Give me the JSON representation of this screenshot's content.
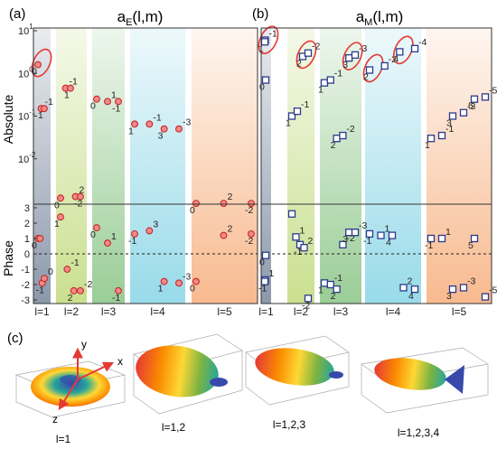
{
  "panel_labels": {
    "a": "(a)",
    "b": "(b)",
    "c": "(c)"
  },
  "colors": {
    "electric_marker_fill": "#f08a8a",
    "electric_marker_edge": "#c62828",
    "magnetic_marker_edge": "#2a3a8c",
    "highlight_ellipse": "#e53935",
    "band_l1": "#6f7f96",
    "band_l2": "#b8d56a",
    "band_l3": "#6fb86a",
    "band_l4": "#6ccbe0",
    "band_l5": "#f5a36a"
  },
  "chart_data": [
    {
      "type": "scatter",
      "title": "a_E(l,m)",
      "title_main": "a",
      "title_sub": "E",
      "title_args": "(l,m)",
      "ylabel_top": "Absolute",
      "ylabel_bottom": "Phase",
      "y_scale_top": "log",
      "ylim_top": [
        0.001,
        10
      ],
      "ylim_bottom": [
        -3,
        3
      ],
      "y_ticks_top": [
        "10",
        "10",
        "10",
        "10"
      ],
      "y_tick_exponents_top": [
        "1",
        "0",
        "-1",
        "-2"
      ],
      "y_ticks_bottom": [
        "3",
        "2",
        "1",
        "0",
        "-1",
        "-2",
        "-3"
      ],
      "categories": [
        "l=1",
        "l=2",
        "l=3",
        "l=4",
        "l=5"
      ],
      "reference_line_phase": 0,
      "absolute_points": [
        {
          "l": 1,
          "i": 0,
          "value": 1.6,
          "label": "0",
          "highlight": true
        },
        {
          "l": 1,
          "i": 1,
          "value": 0.15,
          "label": "-1"
        },
        {
          "l": 1,
          "i": 2,
          "value": 0.15,
          "label": "1"
        },
        {
          "l": 2,
          "i": 0,
          "value": 0.0012,
          "label": "0"
        },
        {
          "l": 2,
          "i": 1,
          "value": 0.45,
          "label": "-1"
        },
        {
          "l": 2,
          "i": 2,
          "value": 0.45,
          "label": "1"
        },
        {
          "l": 2,
          "i": 3,
          "value": 0.0013,
          "label": "2"
        },
        {
          "l": 2,
          "i": 4,
          "value": 0.0013,
          "label": "-2"
        },
        {
          "l": 3,
          "i": 0,
          "value": 0.25,
          "label": "0"
        },
        {
          "l": 3,
          "i": 1,
          "value": 0.22,
          "label": "1"
        },
        {
          "l": 3,
          "i": 2,
          "value": 0.22,
          "label": "-1"
        },
        {
          "l": 4,
          "i": 0,
          "value": 0.065,
          "label": "1"
        },
        {
          "l": 4,
          "i": 1,
          "value": 0.065,
          "label": "-1"
        },
        {
          "l": 4,
          "i": 2,
          "value": 0.05,
          "label": "3"
        },
        {
          "l": 4,
          "i": 3,
          "value": 0.05,
          "label": "-3"
        },
        {
          "l": 5,
          "i": 0,
          "value": 0.0009,
          "label": "0"
        },
        {
          "l": 5,
          "i": 1,
          "value": 0.0009,
          "label": "2"
        },
        {
          "l": 5,
          "i": 2,
          "value": 0.0009,
          "label": "-2"
        }
      ],
      "phase_points": [
        {
          "l": 1,
          "i": 0,
          "value": 1.0,
          "label": "0"
        },
        {
          "l": 1,
          "i": 1,
          "value": 1.0,
          "label": ""
        },
        {
          "l": 1,
          "i": 2,
          "value": -1.9,
          "label": "-1"
        },
        {
          "l": 1,
          "i": 3,
          "value": -1.6,
          "label": "0"
        },
        {
          "l": 2,
          "i": 0,
          "value": 2.4,
          "label": "1"
        },
        {
          "l": 2,
          "i": 1,
          "value": -1.0,
          "label": "-1"
        },
        {
          "l": 2,
          "i": 2,
          "value": -2.4,
          "label": "2"
        },
        {
          "l": 2,
          "i": 3,
          "value": -2.4,
          "label": "-2"
        },
        {
          "l": 3,
          "i": 0,
          "value": 1.7,
          "label": "0"
        },
        {
          "l": 3,
          "i": 1,
          "value": 0.7,
          "label": "1"
        },
        {
          "l": 3,
          "i": 2,
          "value": -2.4,
          "label": "-1"
        },
        {
          "l": 4,
          "i": 0,
          "value": 1.3,
          "label": "-1"
        },
        {
          "l": 4,
          "i": 1,
          "value": 1.5,
          "label": "3"
        },
        {
          "l": 4,
          "i": 2,
          "value": -1.8,
          "label": "1"
        },
        {
          "l": 4,
          "i": 3,
          "value": -1.9,
          "label": "-3"
        },
        {
          "l": 5,
          "i": 0,
          "value": -1.8,
          "label": "0"
        },
        {
          "l": 5,
          "i": 1,
          "value": 1.2,
          "label": "2"
        },
        {
          "l": 5,
          "i": 2,
          "value": 1.3,
          "label": "-2"
        }
      ]
    },
    {
      "type": "scatter",
      "title": "a_M(l,m)",
      "title_main": "a",
      "title_sub": "M",
      "title_args": "(l,m)",
      "y_scale_top": "log",
      "ylim_top": [
        0.001,
        10
      ],
      "ylim_bottom": [
        -3,
        3
      ],
      "categories": [
        "l=1",
        "l=2",
        "l=3",
        "l=4",
        "l=5"
      ],
      "reference_line_phase": 0,
      "absolute_points": [
        {
          "l": 1,
          "i": 0,
          "value": 0.7,
          "label": "0"
        },
        {
          "l": 1,
          "i": 1,
          "value": 6.0,
          "label": "-1",
          "highlight": true
        },
        {
          "l": 1,
          "i": 2,
          "value": 5.5,
          "label": "1",
          "highlight": true
        },
        {
          "l": 2,
          "i": 0,
          "value": 0.1,
          "label": "1"
        },
        {
          "l": 2,
          "i": 1,
          "value": 0.13,
          "label": "-1"
        },
        {
          "l": 2,
          "i": 2,
          "value": 2.5,
          "label": "2",
          "highlight": true
        },
        {
          "l": 2,
          "i": 3,
          "value": 3.0,
          "label": "-2",
          "highlight": true
        },
        {
          "l": 3,
          "i": 0,
          "value": 0.6,
          "label": "1"
        },
        {
          "l": 3,
          "i": 1,
          "value": 0.7,
          "label": "-1"
        },
        {
          "l": 3,
          "i": 2,
          "value": 0.03,
          "label": "2"
        },
        {
          "l": 3,
          "i": 3,
          "value": 0.035,
          "label": "-2"
        },
        {
          "l": 3,
          "i": 4,
          "value": 2.3,
          "label": "3",
          "highlight": true
        },
        {
          "l": 3,
          "i": 5,
          "value": 2.7,
          "label": "-3",
          "highlight": true
        },
        {
          "l": 4,
          "i": 0,
          "value": 1.2,
          "label": "2",
          "highlight": true
        },
        {
          "l": 4,
          "i": 1,
          "value": 1.5,
          "label": "-2",
          "highlight": true
        },
        {
          "l": 4,
          "i": 2,
          "value": 3.2,
          "label": "4",
          "highlight": true
        },
        {
          "l": 4,
          "i": 3,
          "value": 3.8,
          "label": "-4",
          "highlight": true
        },
        {
          "l": 5,
          "i": 0,
          "value": 0.03,
          "label": "1"
        },
        {
          "l": 5,
          "i": 1,
          "value": 0.035,
          "label": "-1"
        },
        {
          "l": 5,
          "i": 2,
          "value": 0.1,
          "label": "3"
        },
        {
          "l": 5,
          "i": 3,
          "value": 0.12,
          "label": "-3"
        },
        {
          "l": 5,
          "i": 4,
          "value": 0.25,
          "label": "5"
        },
        {
          "l": 5,
          "i": 5,
          "value": 0.28,
          "label": "-5"
        }
      ],
      "phase_points": [
        {
          "l": 1,
          "i": 0,
          "value": -0.1,
          "label": "0"
        },
        {
          "l": 1,
          "i": 1,
          "value": -1.7,
          "label": "1"
        },
        {
          "l": 1,
          "i": 2,
          "value": -1.8,
          "label": "-1"
        },
        {
          "l": 2,
          "i": 0,
          "value": 2.6,
          "label": ""
        },
        {
          "l": 2,
          "i": 1,
          "value": 1.1,
          "label": "1"
        },
        {
          "l": 2,
          "i": 2,
          "value": 0.6,
          "label": "-1"
        },
        {
          "l": 2,
          "i": 3,
          "value": 0.4,
          "label": "2"
        },
        {
          "l": 2,
          "i": 4,
          "value": -2.9,
          "label": "-2"
        },
        {
          "l": 3,
          "i": 0,
          "value": -1.9,
          "label": "1"
        },
        {
          "l": 3,
          "i": 1,
          "value": -2.0,
          "label": "-1"
        },
        {
          "l": 3,
          "i": 2,
          "value": -2.3,
          "label": "2"
        },
        {
          "l": 3,
          "i": 3,
          "value": 0.6,
          "label": "-2"
        },
        {
          "l": 3,
          "i": 4,
          "value": 1.4,
          "label": "3"
        },
        {
          "l": 3,
          "i": 5,
          "value": 1.4,
          "label": "-3"
        },
        {
          "l": 4,
          "i": 0,
          "value": 1.3,
          "label": "-1"
        },
        {
          "l": 4,
          "i": 1,
          "value": 1.2,
          "label": "1"
        },
        {
          "l": 4,
          "i": 2,
          "value": 1.2,
          "label": "4"
        },
        {
          "l": 4,
          "i": 3,
          "value": -2.2,
          "label": "2"
        },
        {
          "l": 4,
          "i": 4,
          "value": -2.3,
          "label": "4"
        },
        {
          "l": 5,
          "i": 0,
          "value": 1.0,
          "label": "-1"
        },
        {
          "l": 5,
          "i": 1,
          "value": 1.0,
          "label": "1"
        },
        {
          "l": 5,
          "i": 2,
          "value": -2.3,
          "label": "3"
        },
        {
          "l": 5,
          "i": 3,
          "value": -2.2,
          "label": "-3"
        },
        {
          "l": 5,
          "i": 4,
          "value": 1.0,
          "label": "5"
        },
        {
          "l": 5,
          "i": 5,
          "value": -2.8,
          "label": "-5"
        }
      ]
    }
  ],
  "renders": {
    "axis_labels": {
      "x": "x",
      "y": "y",
      "z": "z"
    },
    "captions": [
      "l=1",
      "l=1,2",
      "l=1,2,3",
      "l=1,2,3,4"
    ]
  }
}
